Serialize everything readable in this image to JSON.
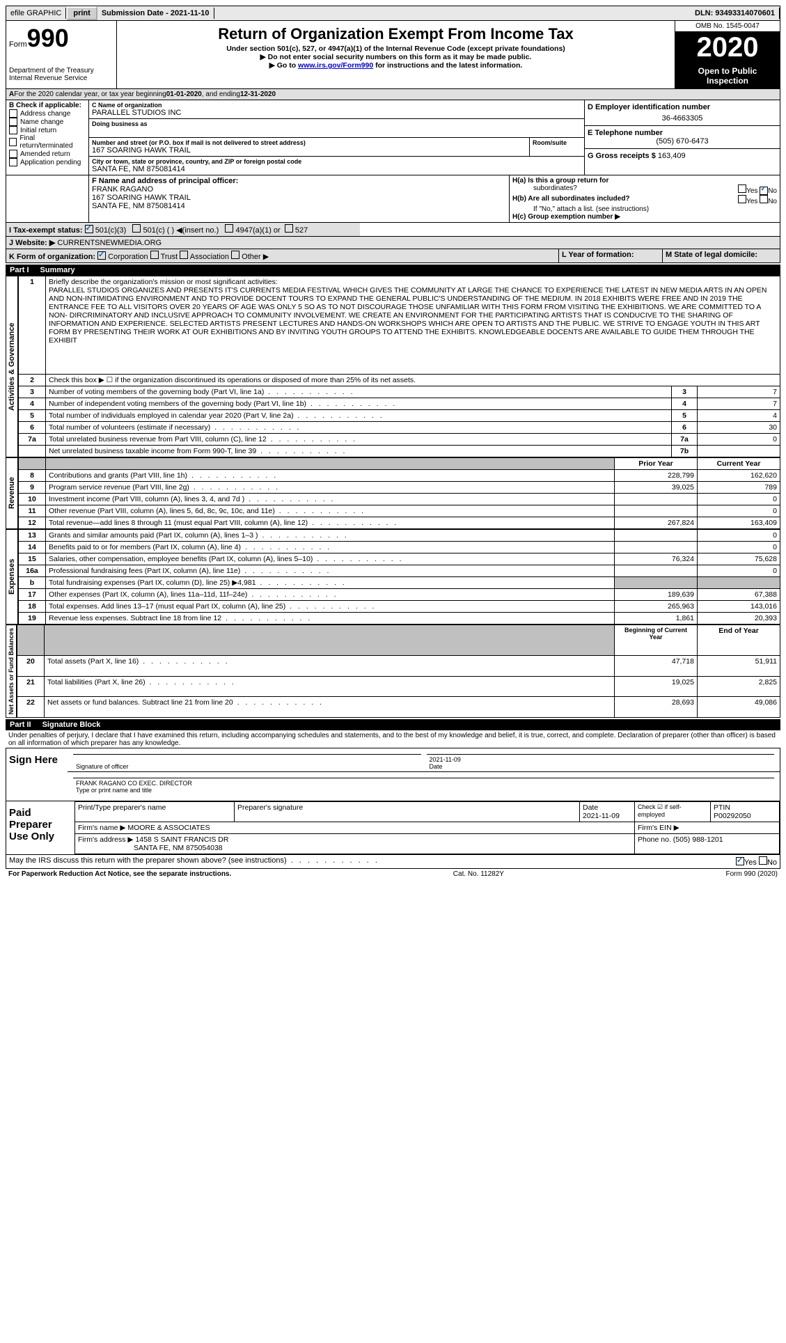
{
  "top": {
    "efile": "efile GRAPHIC",
    "print": "print",
    "sub_date_label": "Submission Date - ",
    "sub_date": "2021-11-10",
    "dln_label": "DLN: ",
    "dln": "93493314070601"
  },
  "header": {
    "form_word": "Form",
    "form_num": "990",
    "dept": "Department of the Treasury",
    "irs": "Internal Revenue Service",
    "title": "Return of Organization Exempt From Income Tax",
    "sub1": "Under section 501(c), 527, or 4947(a)(1) of the Internal Revenue Code (except private foundations)",
    "sub2": "▶ Do not enter social security numbers on this form as it may be made public.",
    "sub3_pre": "▶ Go to ",
    "sub3_link": "www.irs.gov/Form990",
    "sub3_post": " for instructions and the latest information.",
    "omb": "OMB No. 1545-0047",
    "year": "2020",
    "open": "Open to Public Inspection"
  },
  "boxA": {
    "text": "For the 2020 calendar year, or tax year beginning ",
    "begin": "01-01-2020",
    "mid": " , and ending ",
    "end": "12-31-2020"
  },
  "boxB": {
    "label": "B Check if applicable:",
    "items": [
      "Address change",
      "Name change",
      "Initial return",
      "Final return/terminated",
      "Amended return",
      "Application pending"
    ]
  },
  "boxC": {
    "label": "C Name of organization",
    "name": "PARALLEL STUDIOS INC",
    "dba_label": "Doing business as",
    "addr_label": "Number and street (or P.O. box if mail is not delivered to street address)",
    "addr": "167 SOARING HAWK TRAIL",
    "room_label": "Room/suite",
    "city_label": "City or town, state or province, country, and ZIP or foreign postal code",
    "city": "SANTA FE, NM  875081414"
  },
  "boxD": {
    "label": "D Employer identification number",
    "val": "36-4663305"
  },
  "boxE": {
    "label": "E Telephone number",
    "val": "(505) 670-6473"
  },
  "boxG": {
    "label": "G Gross receipts $ ",
    "val": "163,409"
  },
  "boxF": {
    "label": "F Name and address of principal officer:",
    "name": "FRANK RAGANO",
    "addr1": "167 SOARING HAWK TRAIL",
    "addr2": "SANTA FE, NM  875081414"
  },
  "boxH": {
    "ha": "H(a)  Is this a group return for",
    "ha2": "subordinates?",
    "hb": "H(b)  Are all subordinates included?",
    "hb2": "If \"No,\" attach a list. (see instructions)",
    "hc": "H(c)  Group exemption number ▶",
    "yes": "Yes",
    "no": "No"
  },
  "boxI": {
    "label": "I   Tax-exempt status:",
    "a": "501(c)(3)",
    "b": "501(c) (  ) ◀(insert no.)",
    "c": "4947(a)(1) or",
    "d": "527"
  },
  "boxJ": {
    "label": "J   Website: ▶",
    "val": "CURRENTSNEWMEDIA.ORG"
  },
  "boxK": {
    "label": "K Form of organization:",
    "a": "Corporation",
    "b": "Trust",
    "c": "Association",
    "d": "Other ▶"
  },
  "boxL": {
    "label": "L Year of formation:"
  },
  "boxM": {
    "label": "M State of legal domicile:"
  },
  "part1": {
    "num": "Part I",
    "title": "Summary"
  },
  "summary": {
    "q1_label": "1",
    "q1_text": "Briefly describe the organization's mission or most significant activities:",
    "q1_val": "PARALLEL STUDIOS ORGANIZES AND PRESENTS IT'S CURRENTS MEDIA FESTIVAL WHICH GIVES THE COMMUNITY AT LARGE THE CHANCE TO EXPERIENCE THE LATEST IN NEW MEDIA ARTS IN AN OPEN AND NON-INTIMIDATING ENVIRONMENT AND TO PROVIDE DOCENT TOURS TO EXPAND THE GENERAL PUBLIC'S UNDERSTANDING OF THE MEDIUM. IN 2018 EXHIBITS WERE FREE AND IN 2019 THE ENTRANCE FEE TO ALL VISITORS OVER 20 YEARS OF AGE WAS ONLY 5 SO AS TO NOT DISCOURAGE THOSE UNFAMILIAR WITH THIS FORM FROM VISITING THE EXHIBITIONS. WE ARE COMMITTED TO A NON- DIRCRIMINATORY AND INCLUSIVE APPROACH TO COMMUNITY INVOLVEMENT. WE CREATE AN ENVIRONMENT FOR THE PARTICIPATING ARTISTS THAT IS CONDUCIVE TO THE SHARING OF INFORMATION AND EXPERIENCE. SELECTED ARTISTS PRESENT LECTURES AND HANDS-ON WORKSHOPS WHICH ARE OPEN TO ARTISTS AND THE PUBLIC. WE STRIVE TO ENGAGE YOUTH IN THIS ART FORM BY PRESENTING THEIR WORK AT OUR EXHIBITIONS AND BY INVITING YOUTH GROUPS TO ATTEND THE EXHIBITS. KNOWLEDGEABLE DOCENTS ARE AVAILABLE TO GUIDE THEM THROUGH THE EXHIBIT",
    "q2": "Check this box ▶ ☐ if the organization discontinued its operations or disposed of more than 25% of its net assets.",
    "rows_simple": [
      {
        "n": "3",
        "t": "Number of voting members of the governing body (Part VI, line 1a)",
        "ln": "3",
        "v": "7"
      },
      {
        "n": "4",
        "t": "Number of independent voting members of the governing body (Part VI, line 1b)",
        "ln": "4",
        "v": "7"
      },
      {
        "n": "5",
        "t": "Total number of individuals employed in calendar year 2020 (Part V, line 2a)",
        "ln": "5",
        "v": "4"
      },
      {
        "n": "6",
        "t": "Total number of volunteers (estimate if necessary)",
        "ln": "6",
        "v": "30"
      },
      {
        "n": "7a",
        "t": "Total unrelated business revenue from Part VIII, column (C), line 12",
        "ln": "7a",
        "v": "0"
      },
      {
        "n": "",
        "t": "Net unrelated business taxable income from Form 990-T, line 39",
        "ln": "7b",
        "v": ""
      }
    ],
    "col_prior": "Prior Year",
    "col_current": "Current Year",
    "revenue_rows": [
      {
        "n": "8",
        "t": "Contributions and grants (Part VIII, line 1h)",
        "p": "228,799",
        "c": "162,620"
      },
      {
        "n": "9",
        "t": "Program service revenue (Part VIII, line 2g)",
        "p": "39,025",
        "c": "789"
      },
      {
        "n": "10",
        "t": "Investment income (Part VIII, column (A), lines 3, 4, and 7d )",
        "p": "",
        "c": "0"
      },
      {
        "n": "11",
        "t": "Other revenue (Part VIII, column (A), lines 5, 6d, 8c, 9c, 10c, and 11e)",
        "p": "",
        "c": "0"
      },
      {
        "n": "12",
        "t": "Total revenue—add lines 8 through 11 (must equal Part VIII, column (A), line 12)",
        "p": "267,824",
        "c": "163,409"
      }
    ],
    "expense_rows": [
      {
        "n": "13",
        "t": "Grants and similar amounts paid (Part IX, column (A), lines 1–3 )",
        "p": "",
        "c": "0"
      },
      {
        "n": "14",
        "t": "Benefits paid to or for members (Part IX, column (A), line 4)",
        "p": "",
        "c": "0"
      },
      {
        "n": "15",
        "t": "Salaries, other compensation, employee benefits (Part IX, column (A), lines 5–10)",
        "p": "76,324",
        "c": "75,628"
      },
      {
        "n": "16a",
        "t": "Professional fundraising fees (Part IX, column (A), line 11e)",
        "p": "",
        "c": "0"
      },
      {
        "n": "b",
        "t": "Total fundraising expenses (Part IX, column (D), line 25) ▶4,981",
        "p": "shaded",
        "c": "shaded"
      },
      {
        "n": "17",
        "t": "Other expenses (Part IX, column (A), lines 11a–11d, 11f–24e)",
        "p": "189,639",
        "c": "67,388"
      },
      {
        "n": "18",
        "t": "Total expenses. Add lines 13–17 (must equal Part IX, column (A), line 25)",
        "p": "265,963",
        "c": "143,016"
      },
      {
        "n": "19",
        "t": "Revenue less expenses. Subtract line 18 from line 12",
        "p": "1,861",
        "c": "20,393"
      }
    ],
    "col_begin": "Beginning of Current Year",
    "col_end": "End of Year",
    "asset_rows": [
      {
        "n": "20",
        "t": "Total assets (Part X, line 16)",
        "p": "47,718",
        "c": "51,911"
      },
      {
        "n": "21",
        "t": "Total liabilities (Part X, line 26)",
        "p": "19,025",
        "c": "2,825"
      },
      {
        "n": "22",
        "t": "Net assets or fund balances. Subtract line 21 from line 20",
        "p": "28,693",
        "c": "49,086"
      }
    ]
  },
  "vlabels": {
    "activities": "Activities & Governance",
    "revenue": "Revenue",
    "expenses": "Expenses",
    "assets": "Net Assets or Fund Balances"
  },
  "part2": {
    "num": "Part II",
    "title": "Signature Block"
  },
  "penalties": "Under penalties of perjury, I declare that I have examined this return, including accompanying schedules and statements, and to the best of my knowledge and belief, it is true, correct, and complete. Declaration of preparer (other than officer) is based on all information of which preparer has any knowledge.",
  "sign": {
    "label": "Sign Here",
    "sig_of_officer": "Signature of officer",
    "date_label": "Date",
    "date": "2021-11-09",
    "name": "FRANK RAGANO CO EXEC. DIRECTOR",
    "name_label": "Type or print name and title"
  },
  "paid": {
    "label": "Paid Preparer Use Only",
    "h1": "Print/Type preparer's name",
    "h2": "Preparer's signature",
    "h3": "Date",
    "date": "2021-11-09",
    "h4": "Check ☑ if self-employed",
    "h5": "PTIN",
    "ptin": "P00292050",
    "firm_name_label": "Firm's name    ▶",
    "firm_name": "MOORE & ASSOCIATES",
    "firm_ein_label": "Firm's EIN ▶",
    "firm_addr_label": "Firm's address ▶",
    "firm_addr1": "1458 S SAINT FRANCIS DR",
    "firm_addr2": "SANTA FE, NM  875054038",
    "phone_label": "Phone no. ",
    "phone": "(505) 988-1201"
  },
  "discuss": {
    "text": "May the IRS discuss this return with the preparer shown above? (see instructions)",
    "yes": "Yes",
    "no": "No"
  },
  "footer": {
    "left": "For Paperwork Reduction Act Notice, see the separate instructions.",
    "mid": "Cat. No. 11282Y",
    "right": "Form 990 (2020)"
  }
}
